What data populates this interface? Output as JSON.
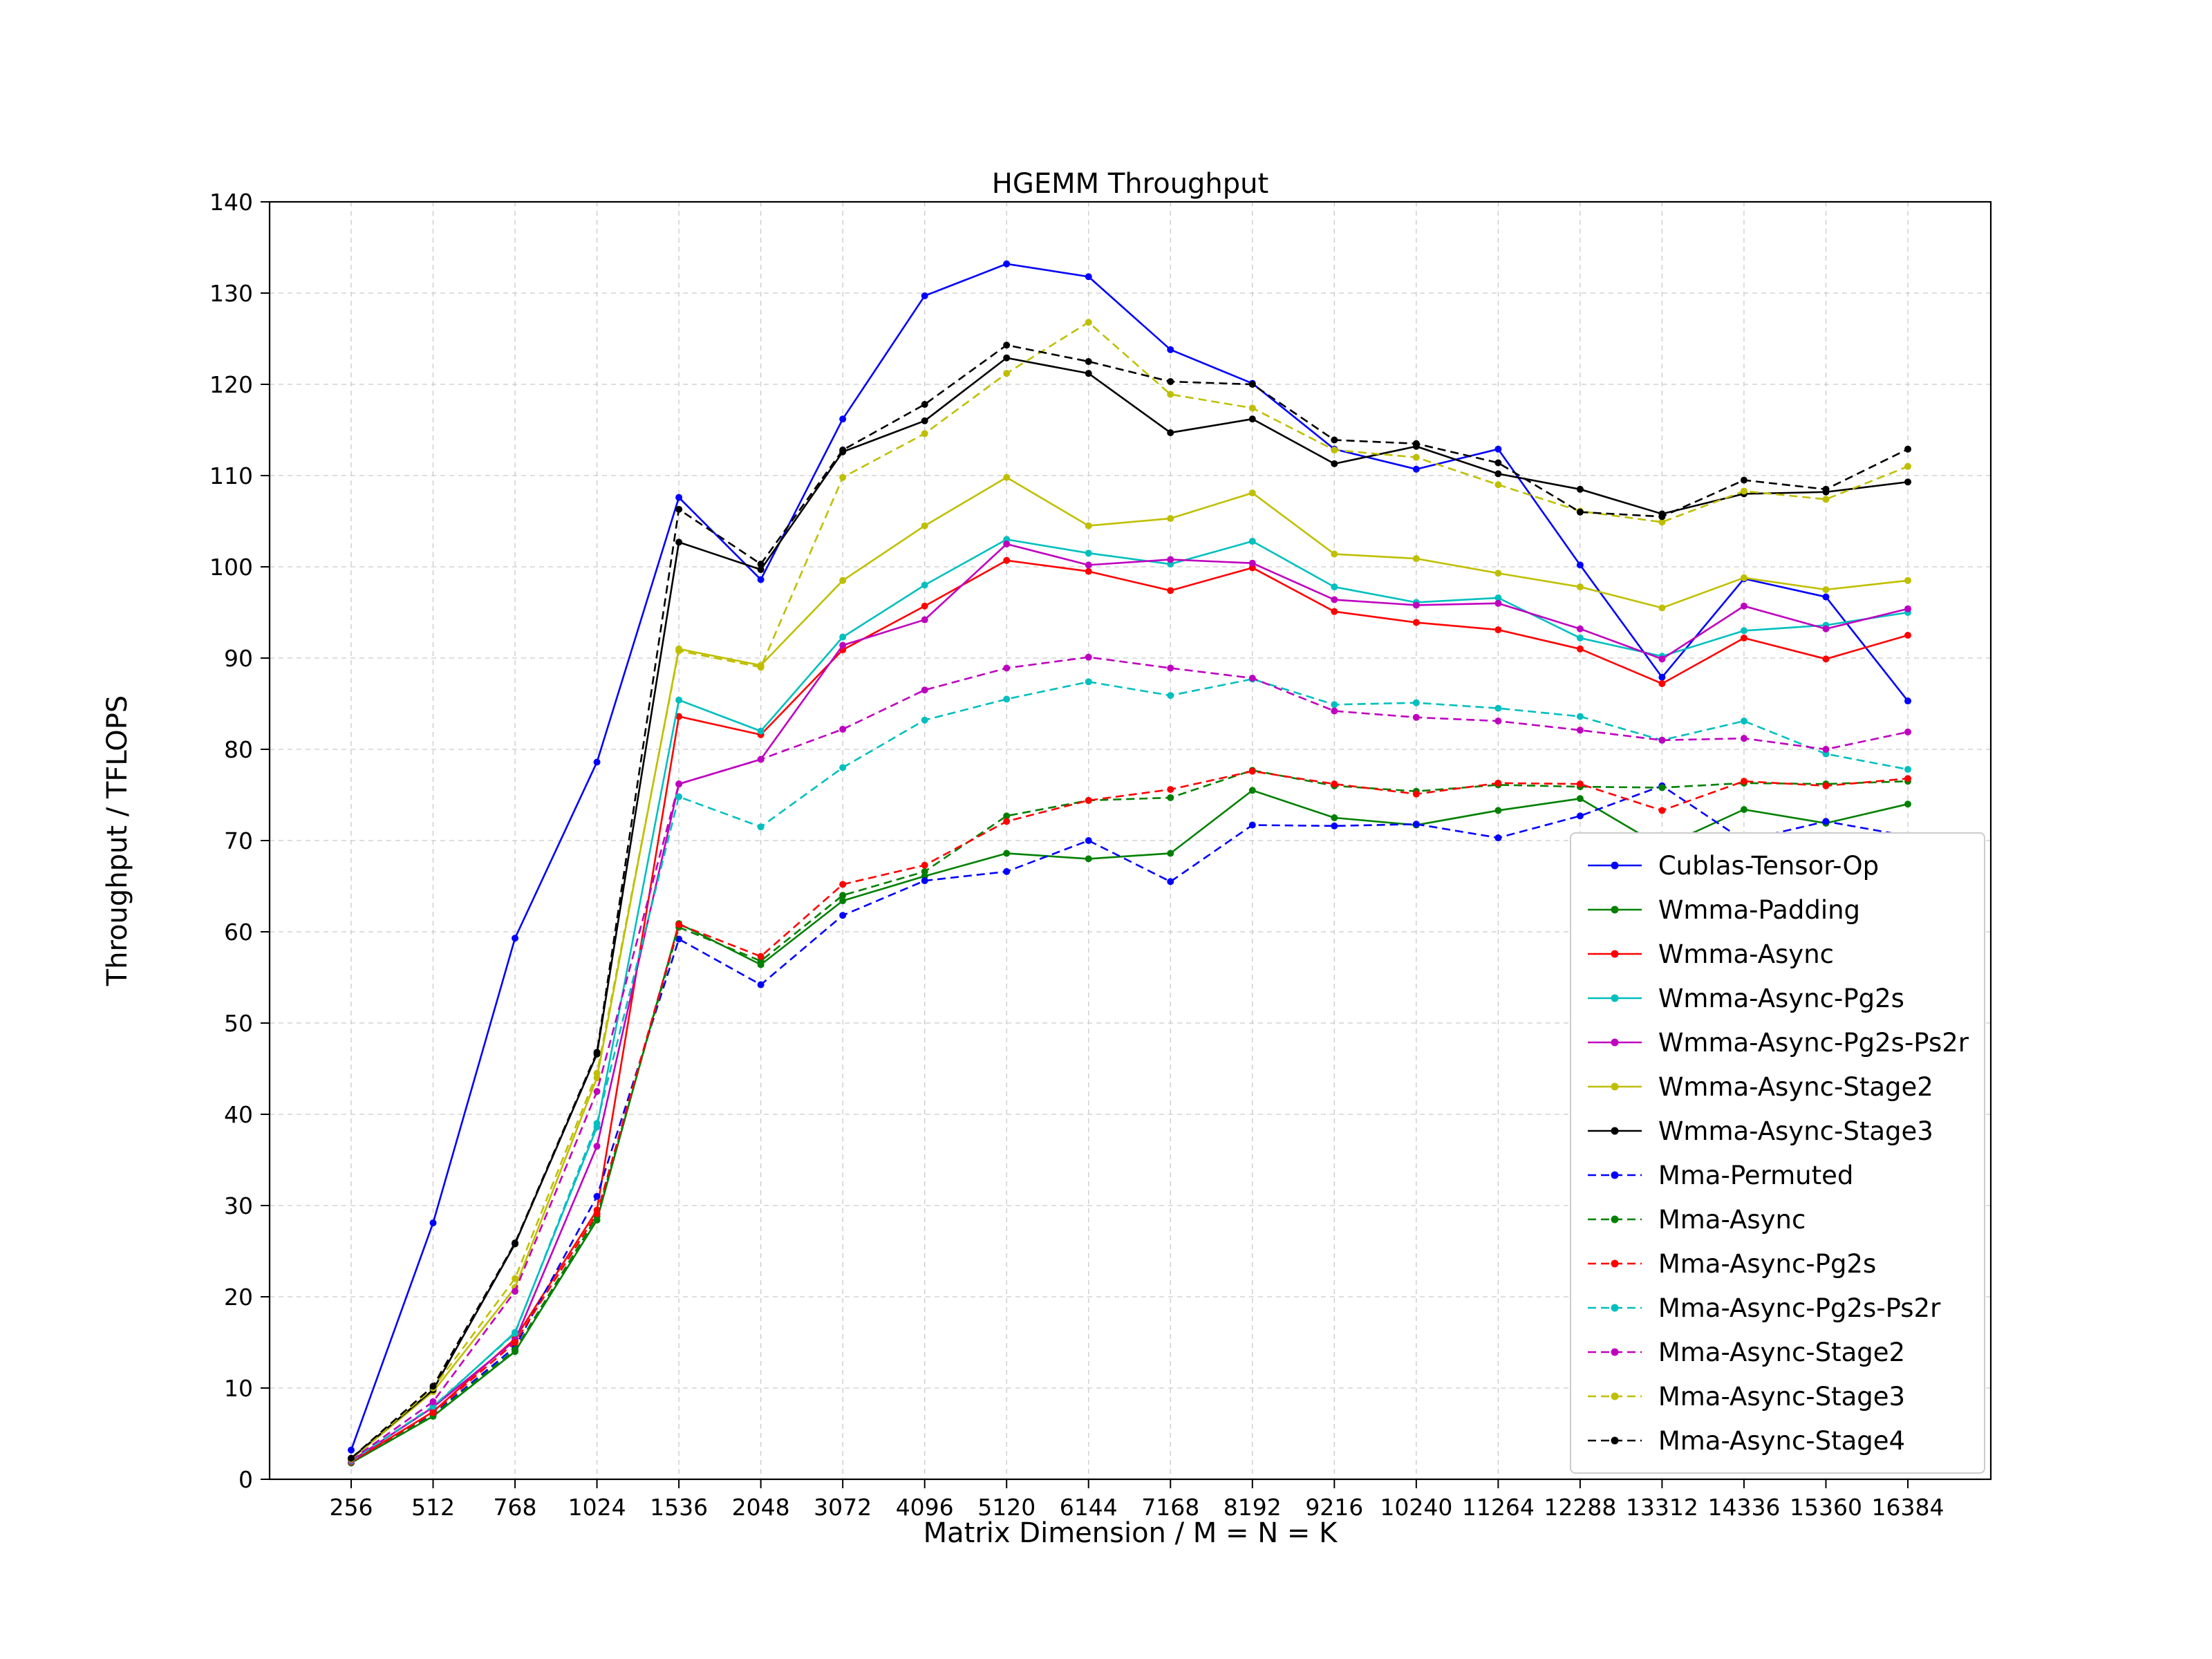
{
  "chart_data": {
    "type": "line",
    "title": "HGEMM Throughput",
    "xlabel": "Matrix Dimension / M = N = K",
    "ylabel": "Throughput / TFLOPS",
    "ylim": [
      0,
      140
    ],
    "yticks": [
      0,
      10,
      20,
      30,
      40,
      50,
      60,
      70,
      80,
      90,
      100,
      110,
      120,
      130,
      140
    ],
    "grid": true,
    "legend_position": "lower right",
    "categories": [
      "256",
      "512",
      "768",
      "1024",
      "1536",
      "2048",
      "3072",
      "4096",
      "5120",
      "6144",
      "7168",
      "8192",
      "9216",
      "10240",
      "11264",
      "12288",
      "13312",
      "14336",
      "15360",
      "16384"
    ],
    "series": [
      {
        "name": "Cublas-Tensor-Op",
        "color": "#0000ff",
        "style": "solid",
        "values": [
          3.2,
          28.1,
          59.3,
          78.6,
          107.6,
          98.6,
          116.2,
          129.7,
          133.2,
          131.8,
          123.8,
          120.1,
          112.9,
          110.7,
          112.9,
          100.2,
          87.9,
          98.7,
          96.7,
          85.3
        ]
      },
      {
        "name": "Wmma-Padding",
        "color": "#008000",
        "style": "solid",
        "values": [
          1.8,
          6.9,
          14.0,
          28.4,
          60.9,
          56.4,
          63.4,
          66.1,
          68.6,
          68.0,
          68.6,
          75.5,
          72.5,
          71.7,
          73.3,
          74.6,
          69.3,
          73.4,
          71.9,
          74.0
        ]
      },
      {
        "name": "Wmma-Async",
        "color": "#ff0000",
        "style": "solid",
        "values": [
          1.9,
          7.4,
          15.4,
          29.5,
          83.6,
          81.6,
          90.9,
          95.7,
          100.7,
          99.5,
          97.4,
          99.9,
          95.1,
          93.9,
          93.1,
          91.0,
          87.2,
          92.2,
          89.9,
          92.5
        ]
      },
      {
        "name": "Wmma-Async-Pg2s",
        "color": "#00bfbf",
        "style": "solid",
        "values": [
          2.0,
          7.9,
          16.1,
          38.6,
          85.4,
          82.0,
          92.3,
          98.0,
          103.0,
          101.5,
          100.3,
          102.8,
          97.8,
          96.1,
          96.6,
          92.2,
          90.2,
          93.0,
          93.6,
          95.0
        ]
      },
      {
        "name": "Wmma-Async-Pg2s-Ps2r",
        "color": "#bf00bf",
        "style": "solid",
        "values": [
          2.0,
          7.9,
          15.2,
          36.5,
          76.2,
          78.9,
          91.4,
          94.2,
          102.5,
          100.2,
          100.8,
          100.4,
          96.4,
          95.8,
          96.0,
          93.2,
          89.9,
          95.7,
          93.2,
          95.4
        ]
      },
      {
        "name": "Wmma-Async-Stage2",
        "color": "#bfbf00",
        "style": "solid",
        "values": [
          2.2,
          9.6,
          21.0,
          44.0,
          91.0,
          89.2,
          98.5,
          104.5,
          109.8,
          104.5,
          105.3,
          108.1,
          101.4,
          100.9,
          99.3,
          97.8,
          95.5,
          98.8,
          97.5,
          98.5
        ]
      },
      {
        "name": "Wmma-Async-Stage3",
        "color": "#000000",
        "style": "solid",
        "values": [
          2.3,
          9.8,
          25.8,
          46.6,
          102.7,
          99.7,
          112.6,
          116.0,
          122.9,
          121.2,
          114.7,
          116.2,
          111.3,
          113.2,
          110.2,
          108.5,
          105.8,
          108.0,
          108.2,
          109.3
        ]
      },
      {
        "name": "Mma-Permuted",
        "color": "#0000ff",
        "style": "dashed",
        "values": [
          1.8,
          7.1,
          14.5,
          31.0,
          59.2,
          54.2,
          61.8,
          65.6,
          66.6,
          70.0,
          65.5,
          71.7,
          71.6,
          71.8,
          70.3,
          72.7,
          76.0,
          70.0,
          72.1,
          70.5
        ]
      },
      {
        "name": "Mma-Async",
        "color": "#008000",
        "style": "dashed",
        "values": [
          1.8,
          7.0,
          14.2,
          28.8,
          60.5,
          56.8,
          64.0,
          66.6,
          72.7,
          74.4,
          74.7,
          77.7,
          76.0,
          75.4,
          76.1,
          75.9,
          75.8,
          76.3,
          76.2,
          76.5
        ]
      },
      {
        "name": "Mma-Async-Pg2s",
        "color": "#ff0000",
        "style": "dashed",
        "values": [
          1.9,
          7.3,
          15.0,
          29.1,
          60.8,
          57.3,
          65.2,
          67.3,
          72.1,
          74.4,
          75.6,
          77.6,
          76.2,
          75.1,
          76.3,
          76.2,
          73.3,
          76.5,
          76.0,
          76.8
        ]
      },
      {
        "name": "Mma-Async-Pg2s-Ps2r",
        "color": "#00bfbf",
        "style": "dashed",
        "values": [
          2.0,
          8.0,
          16.0,
          39.0,
          74.8,
          71.5,
          78.0,
          83.2,
          85.5,
          87.4,
          85.9,
          87.7,
          84.9,
          85.1,
          84.5,
          83.6,
          81.0,
          83.1,
          79.5,
          77.8
        ]
      },
      {
        "name": "Mma-Async-Stage2",
        "color": "#bf00bf",
        "style": "dashed",
        "values": [
          2.1,
          8.5,
          20.6,
          42.5,
          76.2,
          78.9,
          82.2,
          86.5,
          88.9,
          90.1,
          88.9,
          87.8,
          84.2,
          83.5,
          83.1,
          82.1,
          81.0,
          81.2,
          80.0,
          81.9
        ]
      },
      {
        "name": "Mma-Async-Stage3",
        "color": "#bfbf00",
        "style": "dashed",
        "values": [
          2.2,
          10.0,
          22.0,
          44.5,
          90.8,
          89.0,
          109.8,
          114.6,
          121.2,
          126.8,
          118.9,
          117.4,
          112.8,
          112.0,
          109.0,
          106.1,
          104.9,
          108.3,
          107.4,
          111.0
        ]
      },
      {
        "name": "Mma-Async-Stage4",
        "color": "#000000",
        "style": "dashed",
        "values": [
          2.3,
          10.2,
          25.9,
          46.8,
          106.3,
          100.3,
          112.8,
          117.8,
          124.3,
          122.5,
          120.3,
          120.0,
          113.9,
          113.5,
          111.4,
          106.0,
          105.5,
          109.5,
          108.5,
          112.9
        ]
      }
    ]
  }
}
